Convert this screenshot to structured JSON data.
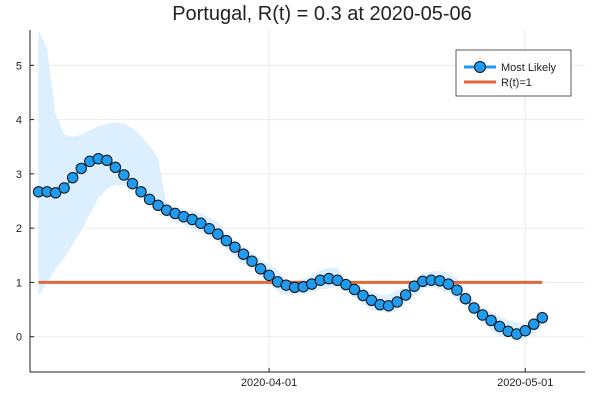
{
  "chart_data": {
    "type": "line",
    "title": "Portugal, R(t) = 0.3 at 2020-05-06",
    "xlabel": "",
    "ylabel": "",
    "x_range": [
      "2020-03-04",
      "2020-05-08"
    ],
    "ylim": [
      -0.65,
      5.65
    ],
    "y_ticks": [
      0,
      1,
      2,
      3,
      4,
      5
    ],
    "x_ticks": [
      "2020-04-01",
      "2020-05-01"
    ],
    "grid": true,
    "legend_position": "top-right",
    "series": [
      {
        "name": "Most Likely",
        "color": "#1f9bf0",
        "marker": "circle",
        "start_date": "2020-03-05",
        "values": [
          2.67,
          2.67,
          2.65,
          2.74,
          2.93,
          3.1,
          3.23,
          3.28,
          3.25,
          3.12,
          2.98,
          2.82,
          2.67,
          2.53,
          2.42,
          2.33,
          2.27,
          2.21,
          2.16,
          2.09,
          1.99,
          1.89,
          1.77,
          1.65,
          1.52,
          1.39,
          1.25,
          1.13,
          1.01,
          0.95,
          0.91,
          0.92,
          0.97,
          1.04,
          1.07,
          1.04,
          0.96,
          0.87,
          0.76,
          0.67,
          0.59,
          0.57,
          0.64,
          0.77,
          0.93,
          1.02,
          1.04,
          1.03,
          0.97,
          0.86,
          0.7,
          0.53,
          0.4,
          0.3,
          0.19,
          0.1,
          0.05,
          0.11,
          0.23,
          0.35
        ]
      },
      {
        "name": "R(t)=1",
        "color": "#e0693a",
        "values": [
          1,
          1
        ]
      }
    ],
    "band": {
      "color": "#dcefff",
      "upper": [
        5.65,
        5.3,
        4.1,
        3.72,
        3.68,
        3.72,
        3.8,
        3.88,
        3.92,
        3.95,
        3.92,
        3.84,
        3.7,
        3.52,
        3.3
      ],
      "lower": [
        0.75,
        1.0,
        1.25,
        1.45,
        1.7,
        1.95,
        2.25,
        2.55,
        2.72,
        2.8,
        2.78,
        2.7,
        2.58,
        2.45,
        2.35
      ],
      "shown_for_first_points": 15
    }
  }
}
